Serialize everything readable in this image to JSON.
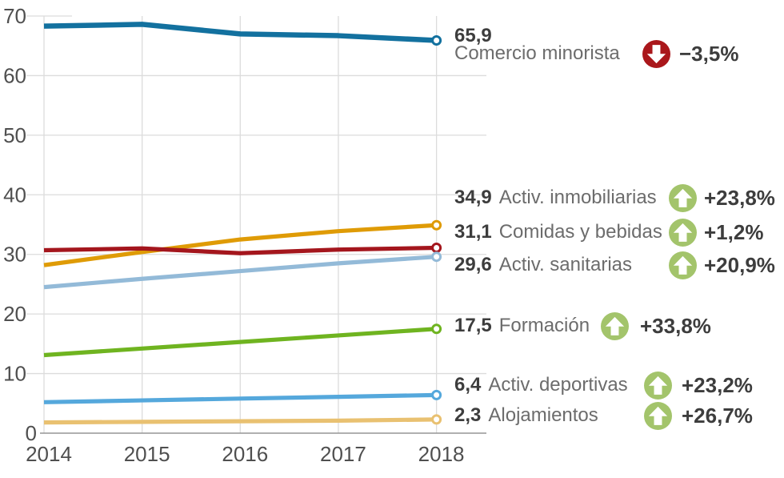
{
  "chart_data": {
    "type": "line",
    "x": [
      "2014",
      "2015",
      "2016",
      "2017",
      "2018"
    ],
    "ylim": [
      0,
      70
    ],
    "yticks": [
      0,
      10,
      20,
      30,
      40,
      50,
      60,
      70
    ],
    "grid": true,
    "legend_position": "right",
    "series": [
      {
        "name": "Comercio minorista",
        "end_label": "65,9",
        "change": "−3,5%",
        "direction": "down",
        "color": "#13719f",
        "values": [
          68.3,
          68.6,
          67.0,
          66.7,
          65.9
        ]
      },
      {
        "name": "Activ. inmobiliarias",
        "end_label": "34,9",
        "change": "+23,8%",
        "direction": "up",
        "color": "#df9b06",
        "values": [
          28.2,
          30.4,
          32.5,
          33.9,
          34.9
        ]
      },
      {
        "name": "Comidas y bebidas",
        "end_label": "31,1",
        "change": "+1,2%",
        "direction": "up",
        "color": "#a4161d",
        "values": [
          30.7,
          31.0,
          30.2,
          30.8,
          31.1
        ]
      },
      {
        "name": "Activ. sanitarias",
        "end_label": "29,6",
        "change": "+20,9%",
        "direction": "up",
        "color": "#93bad8",
        "values": [
          24.5,
          25.9,
          27.2,
          28.5,
          29.6
        ]
      },
      {
        "name": "Formación",
        "end_label": "17,5",
        "change": "+33,8%",
        "direction": "up",
        "color": "#6fb420",
        "values": [
          13.1,
          14.2,
          15.3,
          16.4,
          17.5
        ]
      },
      {
        "name": "Activ. deportivas",
        "end_label": "6,4",
        "change": "+23,2%",
        "direction": "up",
        "color": "#55a8dc",
        "values": [
          5.2,
          5.5,
          5.8,
          6.1,
          6.4
        ]
      },
      {
        "name": "Alojamientos",
        "end_label": "2,3",
        "change": "+26,7%",
        "direction": "up",
        "color": "#e9c171",
        "values": [
          1.8,
          1.9,
          2.0,
          2.1,
          2.3
        ]
      }
    ],
    "badge_colors": {
      "up": "#a3c46b",
      "down": "#aa171b"
    },
    "axis_colors": {
      "tick_label": "#4f4f4f",
      "gridline": "#dcdcdc",
      "axis_line": "#969696"
    }
  }
}
